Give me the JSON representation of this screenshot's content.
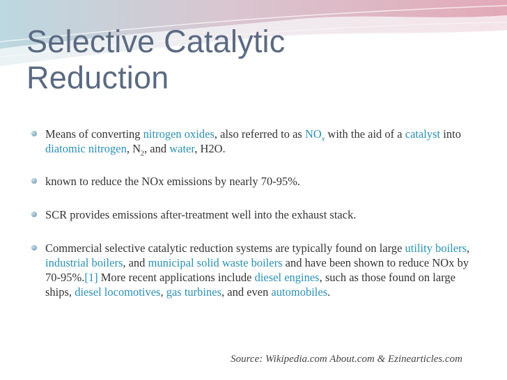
{
  "slide": {
    "title_line1": "Selective Catalytic",
    "title_line2": "Reduction",
    "colors": {
      "title": "#5b6a82",
      "link": "#2a8fb3",
      "body": "#333333",
      "wave_pink": "#e3a9b8",
      "wave_blue": "#bcd8e0"
    },
    "bullets": {
      "b1": {
        "t1": "Means of converting ",
        "l1": "nitrogen oxides",
        "t2": ", also referred to as ",
        "l2": "NO",
        "l2sub": "x",
        "t3": " with the aid of a ",
        "l3": "catalyst",
        "t4": " into ",
        "l4": "diatomic nitrogen",
        "t5": ", N",
        "sub5": "2",
        "t6": ", and ",
        "l6": "water",
        "t7": ", H2O."
      },
      "b2": {
        "text": "known to reduce the NOx emissions by nearly 70-95%."
      },
      "b3": {
        "text": "SCR provides emissions after-treatment well into the exhaust stack."
      },
      "b4": {
        "t1": "Commercial selective catalytic reduction systems are typically found on large ",
        "l1": "utility boilers",
        "t2": ", ",
        "l2": "industrial boilers",
        "t3": ", and ",
        "l3": "municipal solid waste boilers",
        "t4": " and have been shown to reduce NOx by 70-95%.",
        "l4": "[1]",
        "t5": " More recent applications include ",
        "l5": "diesel engines",
        "t6": ", such as those found on large ships, ",
        "l6": "diesel locomotives",
        "t7": ", ",
        "l7": "gas turbines",
        "t8": ", and even ",
        "l8": "automobiles",
        "t9": "."
      }
    },
    "source": "Source: Wikipedia.com About.com & Ezinearticles.com"
  }
}
